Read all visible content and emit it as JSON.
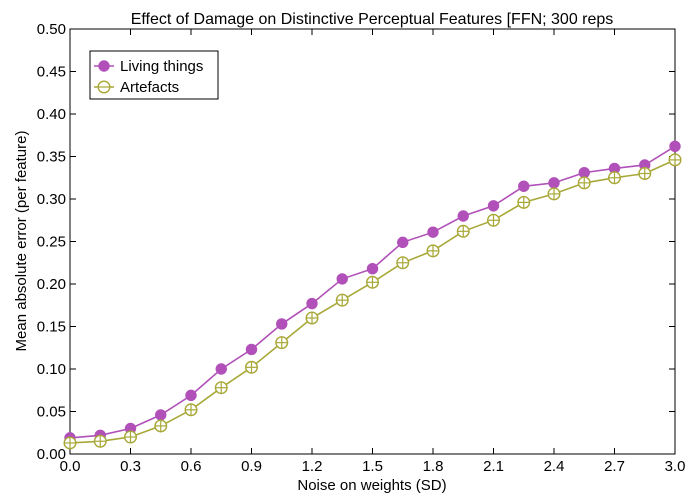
{
  "chart_data": {
    "type": "line",
    "title": "Effect of Damage on Distinctive Perceptual Features [FFN; 300 reps",
    "xlabel": "Noise on weights (SD)",
    "ylabel": "Mean absolute error (per feature)",
    "xlim": [
      0.0,
      3.0
    ],
    "ylim": [
      0.0,
      0.5
    ],
    "x_ticks": [
      "0.0",
      "0.3",
      "0.6",
      "0.9",
      "1.2",
      "1.5",
      "1.8",
      "2.1",
      "2.4",
      "2.7",
      "3.0"
    ],
    "y_ticks": [
      "0.00",
      "0.05",
      "0.10",
      "0.15",
      "0.20",
      "0.25",
      "0.30",
      "0.35",
      "0.40",
      "0.45",
      "0.50"
    ],
    "legend_position": "top-left",
    "grid": false,
    "error_bars": true,
    "x": [
      0.0,
      0.15,
      0.3,
      0.45,
      0.6,
      0.75,
      0.9,
      1.05,
      1.2,
      1.35,
      1.5,
      1.65,
      1.8,
      1.95,
      2.1,
      2.25,
      2.4,
      2.55,
      2.7,
      2.85,
      3.0
    ],
    "series": [
      {
        "name": "Living things",
        "color": "#b050b8",
        "marker": "filled-circle",
        "values": [
          0.019,
          0.022,
          0.03,
          0.046,
          0.069,
          0.1,
          0.123,
          0.153,
          0.177,
          0.206,
          0.218,
          0.249,
          0.261,
          0.28,
          0.292,
          0.315,
          0.319,
          0.331,
          0.336,
          0.34,
          0.362
        ]
      },
      {
        "name": "Artefacts",
        "color": "#a8a838",
        "marker": "open-circle-cross",
        "values": [
          0.013,
          0.015,
          0.02,
          0.033,
          0.052,
          0.078,
          0.102,
          0.131,
          0.16,
          0.181,
          0.202,
          0.225,
          0.239,
          0.262,
          0.275,
          0.296,
          0.306,
          0.319,
          0.325,
          0.33,
          0.346
        ]
      }
    ]
  }
}
